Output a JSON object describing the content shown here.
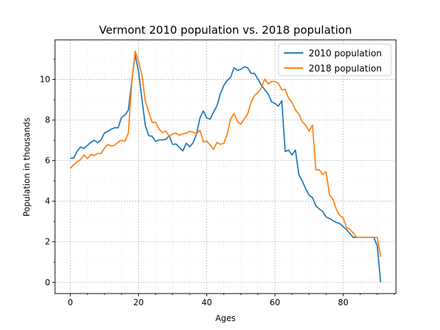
{
  "chart_data": {
    "type": "line",
    "title": "Vermont 2010 population vs. 2018 population",
    "xlabel": "Ages",
    "ylabel": "Population in thousands",
    "xlim": [
      -4.5,
      95.5
    ],
    "ylim": [
      -0.55,
      11.95
    ],
    "xticks": [
      0,
      20,
      40,
      60,
      80
    ],
    "yticks": [
      0,
      2,
      4,
      6,
      8,
      10
    ],
    "x_minor_step": 5,
    "y_minor_step": 1,
    "grid": true,
    "legend_position": "upper-right",
    "series": [
      {
        "name": "2010 population",
        "color": "#1f77b4",
        "values": [
          6.12,
          6.13,
          6.47,
          6.67,
          6.6,
          6.75,
          6.9,
          7.0,
          6.88,
          7.02,
          7.36,
          7.45,
          7.55,
          7.62,
          7.62,
          8.12,
          8.25,
          8.48,
          9.9,
          11.22,
          10.4,
          9.02,
          7.72,
          7.23,
          7.2,
          6.95,
          7.02,
          7.02,
          7.05,
          7.22,
          6.8,
          6.82,
          6.65,
          6.48,
          6.86,
          6.68,
          6.88,
          7.3,
          8.1,
          8.45,
          8.1,
          8.05,
          8.4,
          8.7,
          9.3,
          9.7,
          9.95,
          10.1,
          10.58,
          10.45,
          10.5,
          10.62,
          10.58,
          10.3,
          10.3,
          10.02,
          9.72,
          9.5,
          9.28,
          8.9,
          8.82,
          8.68,
          8.95,
          6.45,
          6.52,
          6.28,
          6.52,
          5.32,
          5.0,
          4.62,
          4.3,
          4.18,
          3.78,
          3.62,
          3.5,
          3.22,
          3.15,
          3.05,
          2.95,
          2.9,
          2.75,
          2.6,
          2.4,
          2.22,
          2.22,
          2.22,
          2.22,
          2.22,
          2.22,
          2.22,
          1.8,
          0.0
        ]
      },
      {
        "name": "2018 population",
        "color": "#ff7f0e",
        "values": [
          5.62,
          5.8,
          5.95,
          6.05,
          6.28,
          6.1,
          6.3,
          6.25,
          6.35,
          6.35,
          6.62,
          6.8,
          6.72,
          6.75,
          6.92,
          7.0,
          6.95,
          7.35,
          9.82,
          11.4,
          10.9,
          10.2,
          8.92,
          8.4,
          7.88,
          7.9,
          7.55,
          7.38,
          7.45,
          7.2,
          7.32,
          7.35,
          7.25,
          7.32,
          7.35,
          7.45,
          7.4,
          7.32,
          7.5,
          6.92,
          6.96,
          6.78,
          6.55,
          6.9,
          6.8,
          6.85,
          7.3,
          8.05,
          8.33,
          7.92,
          7.8,
          8.05,
          8.3,
          8.88,
          9.2,
          9.35,
          9.58,
          10.02,
          9.78,
          9.9,
          9.9,
          9.82,
          9.48,
          9.52,
          9.08,
          8.88,
          8.5,
          8.3,
          7.92,
          7.75,
          7.45,
          7.75,
          5.55,
          5.55,
          5.32,
          5.45,
          4.32,
          4.1,
          3.6,
          3.3,
          3.18,
          2.7,
          2.62,
          2.42,
          2.22,
          2.22,
          2.22,
          2.22,
          2.22,
          2.22,
          2.22,
          1.25
        ]
      }
    ]
  }
}
